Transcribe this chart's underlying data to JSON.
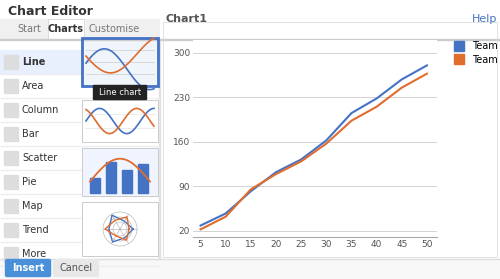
{
  "title": "Chart Editor",
  "chart_title": "Chart1",
  "help_text": "Help",
  "tabs": [
    "Start",
    "Charts",
    "Customise"
  ],
  "active_tab": "Charts",
  "chart_types": [
    "Line",
    "Area",
    "Column",
    "Bar",
    "Scatter",
    "Pie",
    "Map",
    "Trend",
    "More"
  ],
  "tooltip": "Line chart",
  "bg_color": "#f8f8f8",
  "panel_bg": "#ffffff",
  "insert_btn_color": "#4a90d9",
  "x_data": [
    5,
    10,
    15,
    20,
    25,
    30,
    35,
    40,
    45,
    50
  ],
  "team_a": [
    28,
    47,
    82,
    112,
    132,
    162,
    205,
    228,
    258,
    280
  ],
  "team_b": [
    22,
    42,
    85,
    109,
    129,
    157,
    193,
    215,
    245,
    267
  ],
  "team_a_color": "#4472c4",
  "team_b_color": "#e06c2e",
  "yticks": [
    20,
    90,
    160,
    230,
    300
  ],
  "xticks": [
    5,
    10,
    15,
    20,
    25,
    30,
    35,
    40,
    45,
    50
  ],
  "ylim": [
    10,
    320
  ],
  "xlim": [
    3.5,
    52
  ],
  "legend_labels": [
    "Team A",
    "Team B"
  ],
  "help_color": "#4472c4",
  "outer_bg": "#efefef"
}
